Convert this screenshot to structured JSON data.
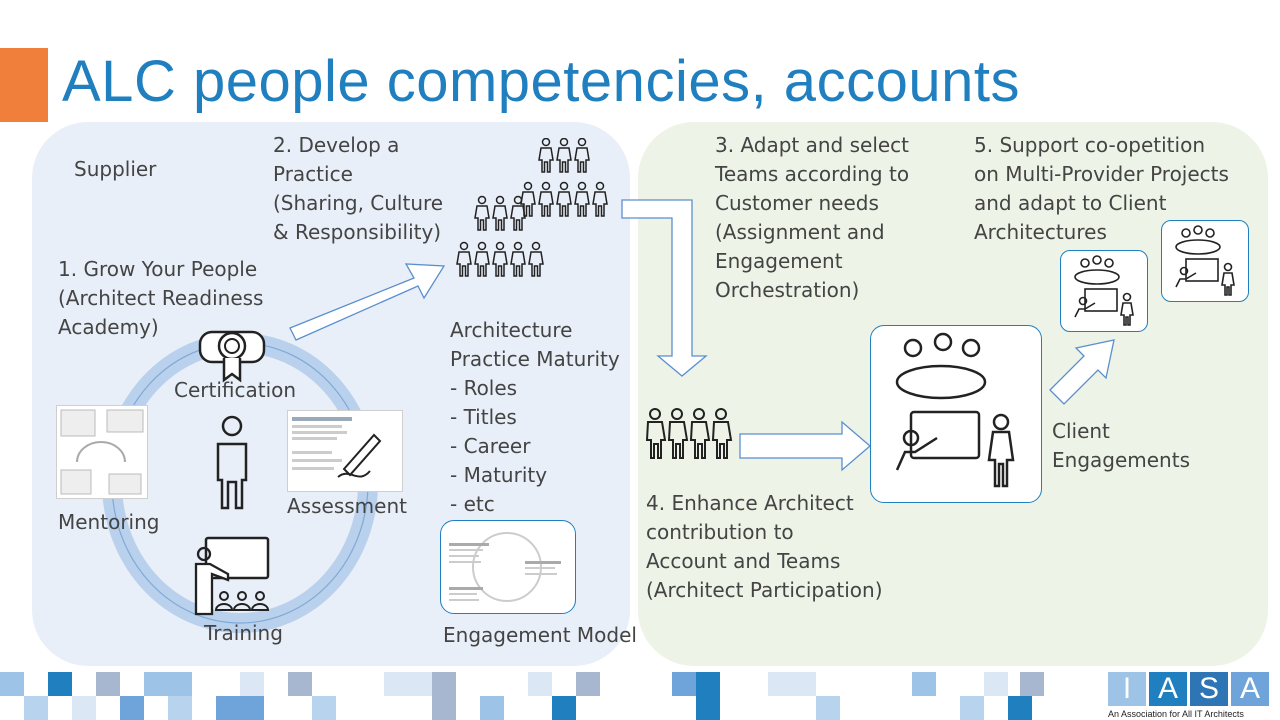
{
  "slide": {
    "title": "ALC people competencies, accounts",
    "colors": {
      "title": "#1f7fbf",
      "accent": "#f07f3c",
      "left_panel": "#e9eff8",
      "right_panel": "#edf3e6",
      "arrow": "#5a8fcf"
    }
  },
  "left": {
    "supplier": "Supplier",
    "step1": "1. Grow Your People\n(Architect Readiness\nAcademy)",
    "step2": "2. Develop a\nPractice\n(Sharing, Culture\n& Responsibility)",
    "certification": "Certification",
    "assessment": "Assessment",
    "mentoring": "Mentoring",
    "training": "Training",
    "maturity_title": "Architecture\nPractice Maturity",
    "maturity_items": [
      "-   Roles",
      "-   Titles",
      "-   Career",
      "-   Maturity",
      "-   etc"
    ],
    "engagement_model": "Engagement Model"
  },
  "right": {
    "step3": "3. Adapt and select\nTeams according to\nCustomer needs\n(Assignment and\nEngagement\nOrchestration)",
    "step4": "4. Enhance Architect\ncontribution to\nAccount and Teams\n(Architect Participation)",
    "step5": "5. Support co-opetition\non Multi-Provider Projects\nand adapt to Client\nArchitectures",
    "client": "Client\nEngagements"
  },
  "footer": {
    "logo_text": "IASA",
    "tagline": "An Association for All IT Architects"
  }
}
